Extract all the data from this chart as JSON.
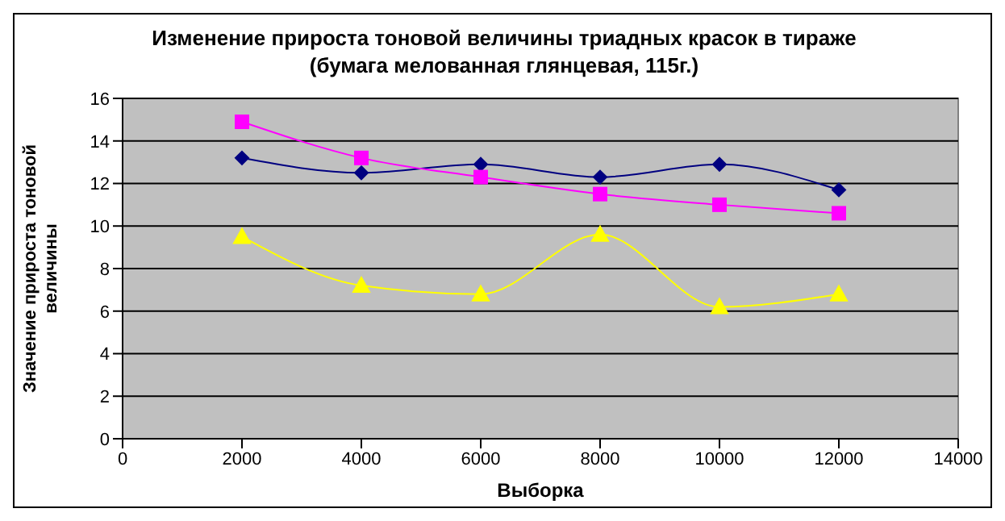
{
  "chart_data": {
    "type": "line",
    "title": "Изменение прироста тоновой величины триадных красок в тираже",
    "subtitle": "(бумага мелованная глянцевая, 115г.)",
    "xlabel": "Выборка",
    "ylabel": "Значение прироста тоновой величины",
    "x": [
      2000,
      4000,
      6000,
      8000,
      10000,
      12000
    ],
    "series": [
      {
        "color": "#000080",
        "marker": "diamond",
        "values": [
          13.2,
          12.5,
          12.9,
          12.3,
          12.9,
          11.7
        ]
      },
      {
        "color": "#ff00ff",
        "marker": "square",
        "values": [
          14.9,
          13.2,
          12.3,
          11.5,
          11.0,
          10.6
        ]
      },
      {
        "color": "#ffff00",
        "marker": "triangle",
        "values": [
          9.5,
          7.2,
          6.8,
          9.6,
          6.2,
          6.8
        ]
      }
    ],
    "xlim": [
      0,
      14000
    ],
    "xticks": [
      0,
      2000,
      4000,
      6000,
      8000,
      10000,
      12000,
      14000
    ],
    "ylim": [
      0,
      16
    ],
    "yticks": [
      0,
      2,
      4,
      6,
      8,
      10,
      12,
      14,
      16
    ],
    "grid": "y",
    "legend": false,
    "line_style": "solid"
  }
}
